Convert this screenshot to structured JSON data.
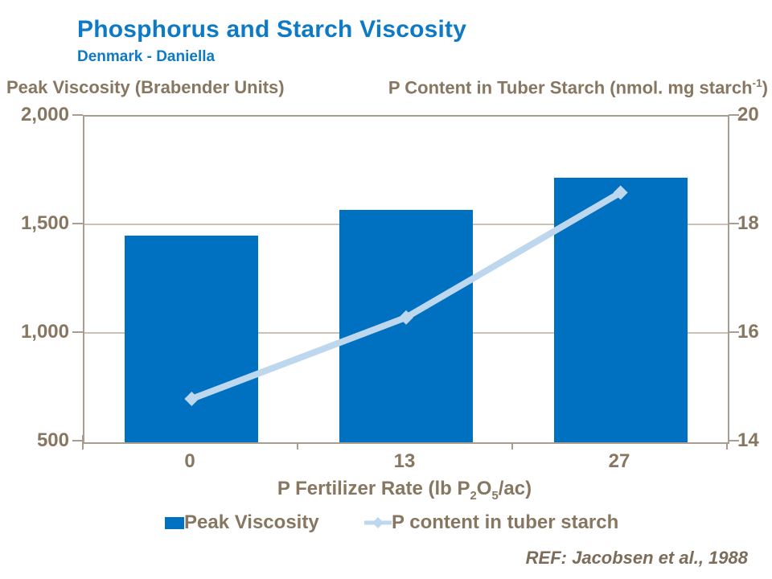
{
  "header": {
    "title": "Phosphorus and Starch Viscosity",
    "subtitle": "Denmark - Daniella"
  },
  "axes": {
    "left_label": "Peak Viscosity (Brabender Units)",
    "right_label_main": "P Content in Tuber Starch (nmol. mg starch",
    "right_label_sup": "-1",
    "right_label_close": ")",
    "left_ticks": [
      "2,000",
      "1,500",
      "1,000",
      "500"
    ],
    "right_ticks": [
      "20",
      "18",
      "16",
      "14"
    ],
    "x_ticks": [
      "0",
      "13",
      "27"
    ],
    "x_title_pre": "P Fertilizer Rate (lb P",
    "x_title_sub1": "2",
    "x_title_mid": "O",
    "x_title_sub2": "5",
    "x_title_post": "/ac)"
  },
  "legend": {
    "bar_label": "Peak Viscosity",
    "line_label": "P content in tuber starch"
  },
  "footer": {
    "ref": "REF: Jacobsen et al., 1988"
  },
  "colors": {
    "bar": "#0070C0",
    "line": "#BDD7EE",
    "title_blue": "#0E7AC6",
    "text_brown": "#877660",
    "frame": "#A89E90",
    "grid": "#CBC2B4"
  },
  "chart_data": {
    "type": "bar",
    "subtype": "combo-bar-line",
    "categories": [
      "0",
      "13",
      "27"
    ],
    "series": [
      {
        "name": "Peak Viscosity",
        "type": "bar",
        "axis": "left",
        "values": [
          1450,
          1570,
          1720
        ]
      },
      {
        "name": "P content in tuber starch",
        "type": "line",
        "axis": "right",
        "values": [
          14.8,
          16.3,
          18.6
        ]
      }
    ],
    "title": "Phosphorus and Starch Viscosity",
    "subtitle": "Denmark - Daniella",
    "xlabel": "P Fertilizer Rate (lb P2O5/ac)",
    "ylabel_left": "Peak Viscosity (Brabender Units)",
    "ylabel_right": "P Content in Tuber Starch (nmol. mg starch-1)",
    "ylim_left": [
      500,
      2000
    ],
    "yticks_left": [
      500,
      1000,
      1500,
      2000
    ],
    "ylim_right": [
      14,
      20
    ],
    "yticks_right": [
      14,
      16,
      18,
      20
    ],
    "grid": true,
    "legend_position": "bottom",
    "annotation": "REF: Jacobsen et al., 1988"
  }
}
